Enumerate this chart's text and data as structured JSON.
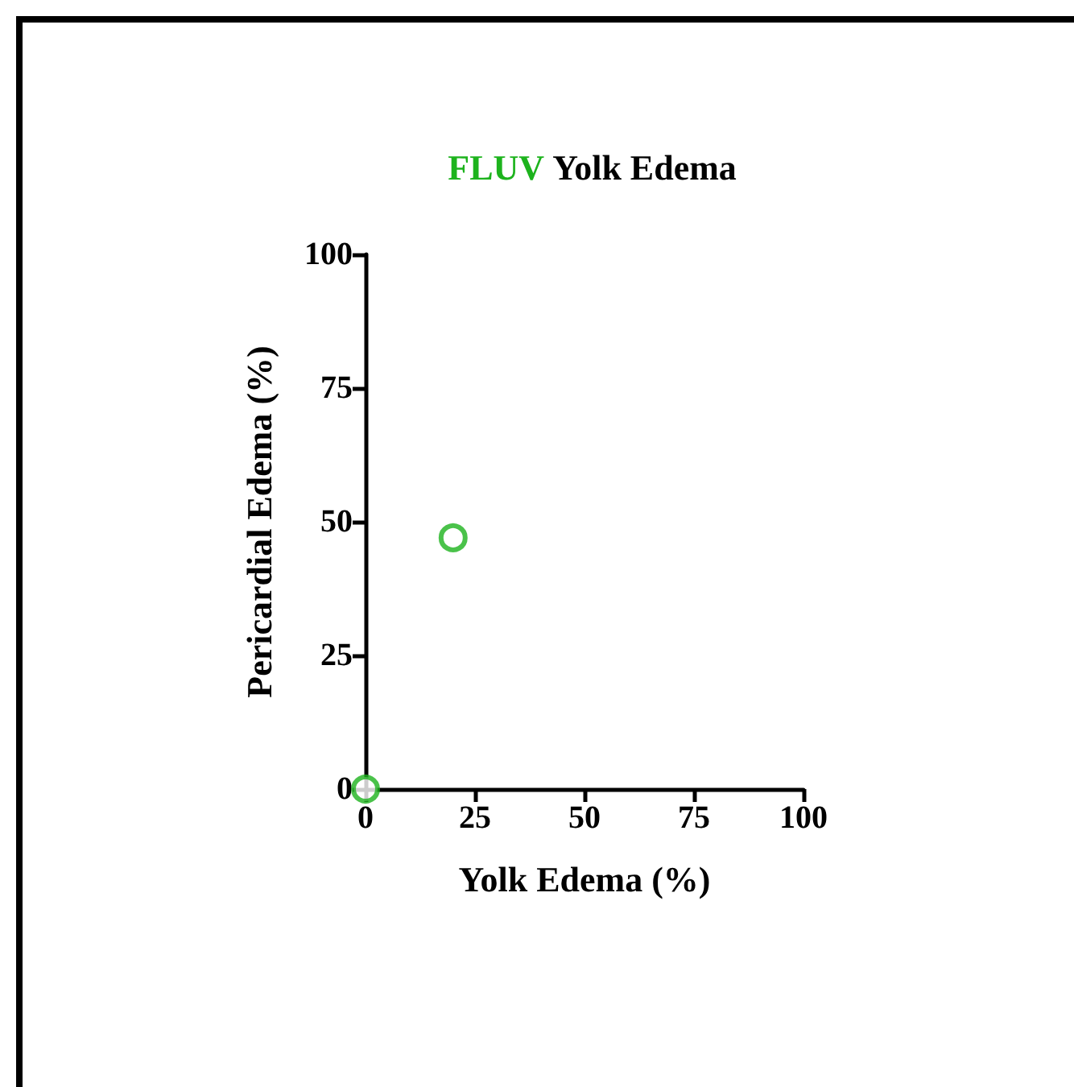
{
  "chart_data": {
    "type": "scatter",
    "title": "FLUV Yolk Edema",
    "xlabel": "Yolk Edema (%)",
    "ylabel": "Pericardial Edema (%)",
    "x": [
      0,
      20
    ],
    "series": [
      {
        "color": "#1db31d",
        "values": [
          0,
          47
        ]
      }
    ],
    "xlim": [
      0,
      100
    ],
    "xticks": [
      0,
      25,
      50,
      75,
      100
    ],
    "ylim": [
      0,
      100
    ],
    "yticks": [
      0,
      25,
      50,
      75,
      100
    ],
    "grid": false,
    "marker": "circle"
  }
}
